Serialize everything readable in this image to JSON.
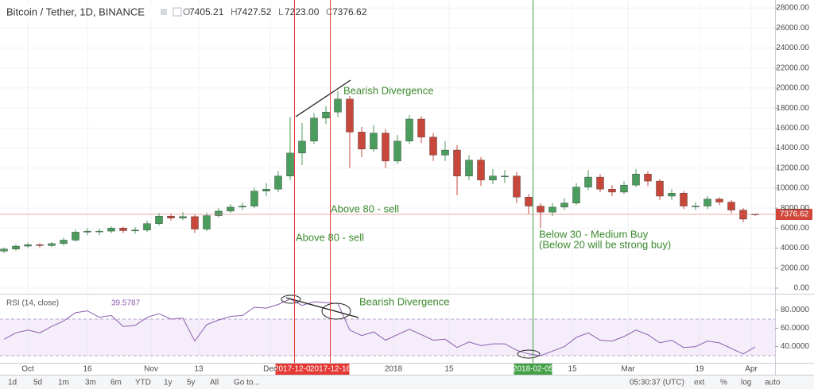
{
  "header": {
    "symbol": "Bitcoin / Tether, 1D, BINANCE",
    "ohlc": [
      {
        "key": "O",
        "value": "7405.21"
      },
      {
        "key": "H",
        "value": "7427.52"
      },
      {
        "key": "L",
        "value": "7223.00"
      },
      {
        "key": "C",
        "value": "7376.62"
      }
    ]
  },
  "toolbar": {
    "ranges": [
      "1d",
      "5d",
      "1m",
      "3m",
      "6m",
      "YTD",
      "1y",
      "5y",
      "All",
      "Go to..."
    ],
    "clock": "05:30:37 (UTC)",
    "options": [
      "ext",
      "%",
      "log",
      "auto"
    ]
  },
  "chart_data": [
    {
      "type": "candlestick",
      "up_color": "#4a9d5c",
      "down_color": "#c8473b",
      "grid": true,
      "xlim": [
        "2017-09-24",
        "2018-04-07"
      ],
      "xticks": [
        {
          "value": "2017-10-01",
          "label": "Oct"
        },
        {
          "value": "2017-10-16",
          "label": "16"
        },
        {
          "value": "2017-11-01",
          "label": "Nov"
        },
        {
          "value": "2017-11-13",
          "label": "13"
        },
        {
          "value": "2017-12-01",
          "label": "Dec"
        },
        {
          "value": "2018-01-01",
          "label": "2018"
        },
        {
          "value": "2018-01-15",
          "label": "15"
        },
        {
          "value": "2018-02-15",
          "label": "15"
        },
        {
          "value": "2018-03-01",
          "label": "Mar"
        },
        {
          "value": "2018-03-19",
          "label": "19"
        },
        {
          "value": "2018-04-01",
          "label": "Apr"
        }
      ],
      "ylim": [
        -400,
        28800
      ],
      "yticks": [
        {
          "value": 0,
          "label": "0.00"
        },
        {
          "value": 2000,
          "label": "2000.00"
        },
        {
          "value": 4000,
          "label": "4000.00"
        },
        {
          "value": 6000,
          "label": "6000.00"
        },
        {
          "value": 8000,
          "label": "8000.00"
        },
        {
          "value": 10000,
          "label": "10000.00"
        },
        {
          "value": 12000,
          "label": "12000.00"
        },
        {
          "value": 14000,
          "label": "14000.00"
        },
        {
          "value": 16000,
          "label": "16000.00"
        },
        {
          "value": 18000,
          "label": "18000.00"
        },
        {
          "value": 20000,
          "label": "20000.00"
        },
        {
          "value": 22000,
          "label": "22000.00"
        },
        {
          "value": 24000,
          "label": "24000.00"
        },
        {
          "value": 26000,
          "label": "26000.00"
        },
        {
          "value": 28000,
          "label": "28000.00"
        }
      ],
      "markers": [
        {
          "date": "2017-12-07",
          "color": "#e53935"
        },
        {
          "date": "2017-12-16",
          "color": "#e53935"
        },
        {
          "date": "2018-02-05",
          "color": "#43a047"
        }
      ],
      "annotations": [
        "Bearish Divergence",
        "Above 80 - sell",
        "Above 80 - sell",
        "Below 30 - Medium Buy",
        "(Below 20 will be strong buy)"
      ],
      "x": [
        "2017-09-25",
        "2017-09-28",
        "2017-10-01",
        "2017-10-04",
        "2017-10-07",
        "2017-10-10",
        "2017-10-13",
        "2017-10-16",
        "2017-10-19",
        "2017-10-22",
        "2017-10-25",
        "2017-10-28",
        "2017-10-31",
        "2017-11-03",
        "2017-11-06",
        "2017-11-09",
        "2017-11-12",
        "2017-11-15",
        "2017-11-18",
        "2017-11-21",
        "2017-11-24",
        "2017-11-27",
        "2017-11-30",
        "2017-12-03",
        "2017-12-06",
        "2017-12-09",
        "2017-12-12",
        "2017-12-15",
        "2017-12-18",
        "2017-12-21",
        "2017-12-24",
        "2017-12-27",
        "2017-12-30",
        "2018-01-02",
        "2018-01-05",
        "2018-01-08",
        "2018-01-11",
        "2018-01-14",
        "2018-01-17",
        "2018-01-20",
        "2018-01-23",
        "2018-01-26",
        "2018-01-29",
        "2018-02-01",
        "2018-02-04",
        "2018-02-07",
        "2018-02-10",
        "2018-02-13",
        "2018-02-16",
        "2018-02-19",
        "2018-02-22",
        "2018-02-25",
        "2018-02-28",
        "2018-03-03",
        "2018-03-06",
        "2018-03-09",
        "2018-03-12",
        "2018-03-15",
        "2018-03-18",
        "2018-03-21",
        "2018-03-24",
        "2018-03-27",
        "2018-03-30",
        "2018-04-02"
      ],
      "open": [
        3700,
        3900,
        4200,
        4350,
        4250,
        4450,
        4800,
        5600,
        5700,
        5700,
        6000,
        5750,
        5800,
        6450,
        7200,
        7000,
        7150,
        5900,
        7250,
        7700,
        8100,
        8200,
        9700,
        9900,
        11200,
        13500,
        14700,
        17000,
        17600,
        18900,
        15600,
        13900,
        15500,
        12700,
        14700,
        16900,
        15100,
        13300,
        13800,
        11200,
        12800,
        10800,
        11200,
        11200,
        9100,
        8200,
        7600,
        8100,
        8500,
        10100,
        11100,
        9900,
        9600,
        10300,
        11400,
        10700,
        9200,
        9500,
        8200,
        8200,
        8900,
        8600,
        7800,
        7405.21
      ],
      "high": [
        4050,
        4350,
        4550,
        4500,
        4600,
        5050,
        5850,
        6000,
        5950,
        6200,
        6150,
        6100,
        6750,
        7500,
        7450,
        7600,
        7350,
        7550,
        8000,
        8400,
        8550,
        10050,
        10500,
        11700,
        17100,
        16500,
        17500,
        18200,
        19700,
        19200,
        16100,
        16300,
        15900,
        15300,
        17300,
        17200,
        15500,
        14700,
        14300,
        13300,
        13100,
        11900,
        11800,
        11600,
        9400,
        8500,
        8500,
        9000,
        10500,
        11800,
        11400,
        10300,
        10700,
        11900,
        11700,
        10900,
        9900,
        9700,
        8600,
        9200,
        9100,
        8800,
        8000,
        7427.52
      ],
      "low": [
        3500,
        3750,
        4050,
        4050,
        4100,
        4250,
        4650,
        5300,
        5300,
        5500,
        5500,
        5450,
        5600,
        6250,
        6750,
        6800,
        5500,
        5700,
        7050,
        7500,
        7800,
        8000,
        9200,
        9600,
        10800,
        12300,
        14400,
        16400,
        17100,
        12000,
        13100,
        13600,
        12000,
        12400,
        14400,
        14500,
        12700,
        12700,
        9300,
        10800,
        10200,
        10400,
        10500,
        8500,
        7400,
        6000,
        7200,
        7800,
        8300,
        9800,
        9600,
        9200,
        9400,
        10100,
        10200,
        8800,
        8800,
        7900,
        7800,
        7900,
        8300,
        7500,
        6600,
        7223
      ],
      "close": [
        3900,
        4200,
        4350,
        4250,
        4450,
        4800,
        5600,
        5700,
        5700,
        6000,
        5750,
        5800,
        6450,
        7200,
        7000,
        7150,
        5900,
        7250,
        7700,
        8100,
        8200,
        9700,
        9900,
        11200,
        13500,
        14700,
        17000,
        17600,
        18900,
        15600,
        13900,
        15500,
        12700,
        14700,
        16900,
        15100,
        13300,
        13800,
        11200,
        12800,
        10800,
        11200,
        11200,
        9100,
        8200,
        7600,
        8100,
        8500,
        10100,
        11100,
        9900,
        9600,
        10300,
        11400,
        10700,
        9200,
        9500,
        8200,
        8200,
        8900,
        8600,
        7800,
        6900,
        7376.62
      ]
    },
    {
      "type": "line",
      "title": "RSI (14, close)",
      "color": "#8e5bb0",
      "band": [
        30,
        70
      ],
      "band_color": "#9b59d0",
      "ylim": [
        24,
        96
      ],
      "yticks": [
        {
          "value": 40,
          "label": "40.0000"
        },
        {
          "value": 60,
          "label": "60.0000"
        },
        {
          "value": 80,
          "label": "80.0000"
        }
      ],
      "annotations": [
        "Bearish Divergence"
      ],
      "x": [
        "2017-09-25",
        "2017-09-28",
        "2017-10-01",
        "2017-10-04",
        "2017-10-07",
        "2017-10-10",
        "2017-10-13",
        "2017-10-16",
        "2017-10-19",
        "2017-10-22",
        "2017-10-25",
        "2017-10-28",
        "2017-10-31",
        "2017-11-03",
        "2017-11-06",
        "2017-11-09",
        "2017-11-12",
        "2017-11-15",
        "2017-11-18",
        "2017-11-21",
        "2017-11-24",
        "2017-11-27",
        "2017-11-30",
        "2017-12-03",
        "2017-12-06",
        "2017-12-09",
        "2017-12-12",
        "2017-12-15",
        "2017-12-18",
        "2017-12-21",
        "2017-12-24",
        "2017-12-27",
        "2017-12-30",
        "2018-01-02",
        "2018-01-05",
        "2018-01-08",
        "2018-01-11",
        "2018-01-14",
        "2018-01-17",
        "2018-01-20",
        "2018-01-23",
        "2018-01-26",
        "2018-01-29",
        "2018-02-01",
        "2018-02-04",
        "2018-02-07",
        "2018-02-10",
        "2018-02-13",
        "2018-02-16",
        "2018-02-19",
        "2018-02-22",
        "2018-02-25",
        "2018-02-28",
        "2018-03-03",
        "2018-03-06",
        "2018-03-09",
        "2018-03-12",
        "2018-03-15",
        "2018-03-18",
        "2018-03-21",
        "2018-03-24",
        "2018-03-27",
        "2018-03-30",
        "2018-04-02"
      ],
      "values": [
        48,
        55,
        58,
        55,
        62,
        68,
        77,
        79,
        72,
        74,
        62,
        63,
        72,
        76,
        70,
        71,
        46,
        64,
        69,
        73,
        74,
        83,
        82,
        86,
        92,
        85,
        89,
        88,
        87,
        58,
        52,
        56,
        47,
        53,
        59,
        53,
        47,
        48,
        39,
        45,
        41,
        43,
        43,
        36,
        32,
        30,
        35,
        40,
        50,
        55,
        47,
        46,
        51,
        58,
        53,
        44,
        47,
        39,
        40,
        46,
        44,
        38,
        32,
        39.5787
      ]
    }
  ]
}
